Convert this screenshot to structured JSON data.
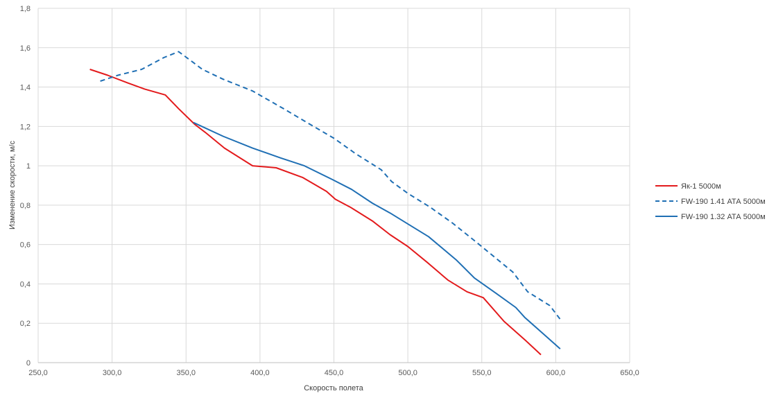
{
  "chart_data": {
    "type": "line",
    "title": "",
    "xlabel": "Скорость полета",
    "ylabel": "Изменение скорости, м/с",
    "xlim": [
      250,
      650
    ],
    "ylim": [
      0,
      1.8
    ],
    "x_ticks": [
      250,
      300,
      350,
      400,
      450,
      500,
      550,
      600,
      650
    ],
    "x_tick_labels": [
      "250,0",
      "300,0",
      "350,0",
      "400,0",
      "450,0",
      "500,0",
      "550,0",
      "600,0",
      "650,0"
    ],
    "y_ticks": [
      0,
      0.2,
      0.4,
      0.6,
      0.8,
      1,
      1.2,
      1.4,
      1.6,
      1.8
    ],
    "y_tick_labels": [
      "0",
      "0,2",
      "0,4",
      "0,6",
      "0,8",
      "1",
      "1,2",
      "1,4",
      "1,6",
      "1,8"
    ],
    "grid": "vertical-and-horizontal",
    "legend_position": "right",
    "series": [
      {
        "name": "Як-1 5000м",
        "color": "#e31a1c",
        "dash": "solid",
        "x": [
          285,
          297,
          311,
          322,
          336,
          345,
          356,
          363,
          376,
          395,
          411,
          429,
          445,
          451,
          461,
          476,
          488,
          500,
          513,
          527,
          540,
          551,
          565,
          580,
          590
        ],
        "y": [
          1.49,
          1.46,
          1.42,
          1.39,
          1.36,
          1.29,
          1.21,
          1.17,
          1.09,
          1.0,
          0.99,
          0.94,
          0.87,
          0.83,
          0.79,
          0.72,
          0.65,
          0.59,
          0.51,
          0.42,
          0.36,
          0.33,
          0.21,
          0.11,
          0.04
        ]
      },
      {
        "name": "FW-190 1.41 АТА 5000м",
        "color": "#1f6fb4",
        "dash": "dashed",
        "x": [
          292,
          304,
          320,
          335,
          345,
          354,
          361,
          375,
          395,
          416,
          434,
          450,
          465,
          482,
          489,
          500,
          515,
          530,
          545,
          558,
          571,
          581,
          596,
          603
        ],
        "y": [
          1.43,
          1.46,
          1.49,
          1.55,
          1.58,
          1.53,
          1.49,
          1.44,
          1.38,
          1.29,
          1.21,
          1.14,
          1.06,
          0.98,
          0.92,
          0.86,
          0.79,
          0.71,
          0.62,
          0.54,
          0.46,
          0.36,
          0.29,
          0.22
        ]
      },
      {
        "name": "FW-190 1.32 АТА 5000м",
        "color": "#1f6fb4",
        "dash": "solid",
        "x": [
          355,
          375,
          395,
          414,
          430,
          449,
          462,
          476,
          488,
          501,
          514,
          533,
          545,
          560,
          573,
          579,
          591,
          603
        ],
        "y": [
          1.22,
          1.15,
          1.09,
          1.04,
          1.0,
          0.93,
          0.88,
          0.81,
          0.76,
          0.7,
          0.64,
          0.52,
          0.43,
          0.35,
          0.28,
          0.23,
          0.15,
          0.07
        ]
      }
    ]
  }
}
